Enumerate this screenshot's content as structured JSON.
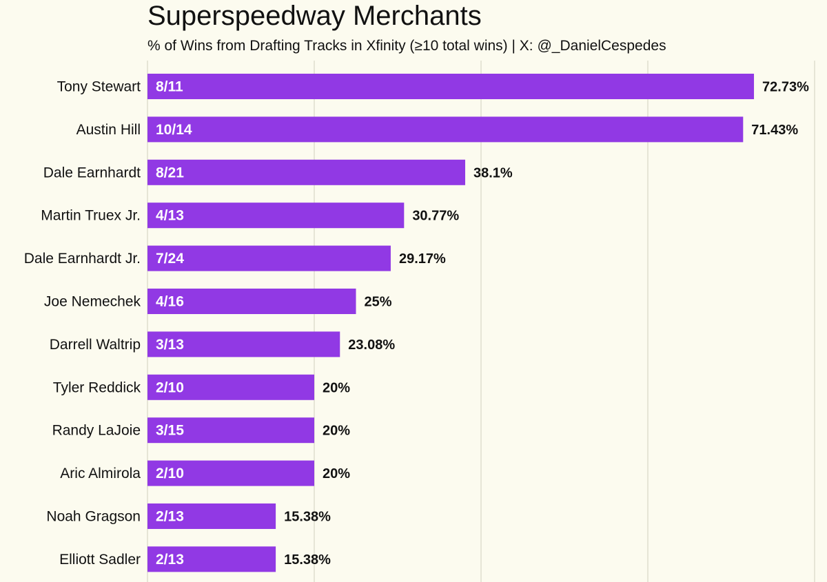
{
  "chart_data": {
    "type": "bar",
    "orientation": "horizontal",
    "title": "Superspeedway Merchants",
    "subtitle": "% of Wins from Drafting Tracks in Xfinity (≥10 total wins) | X: @_DanielCespedes",
    "xlabel": "",
    "ylabel": "",
    "xlim": [
      0,
      80
    ],
    "grid": true,
    "categories": [
      "Tony Stewart",
      "Austin Hill",
      "Dale Earnhardt",
      "Martin Truex Jr.",
      "Dale Earnhardt Jr.",
      "Joe Nemechek",
      "Darrell Waltrip",
      "Tyler Reddick",
      "Randy LaJoie",
      "Aric Almirola",
      "Noah Gragson",
      "Elliott Sadler"
    ],
    "values": [
      72.73,
      71.43,
      38.1,
      30.77,
      29.17,
      25,
      23.08,
      20,
      20,
      20,
      15.38,
      15.38
    ],
    "value_labels": [
      "72.73%",
      "71.43%",
      "38.1%",
      "30.77%",
      "29.17%",
      "25%",
      "23.08%",
      "20%",
      "20%",
      "20%",
      "15.38%",
      "15.38%"
    ],
    "bar_labels": [
      "8/11",
      "10/14",
      "8/21",
      "4/13",
      "7/24",
      "4/16",
      "3/13",
      "2/10",
      "3/15",
      "2/10",
      "2/13",
      "2/13"
    ]
  },
  "colors": {
    "bar": "#9139e4",
    "background": "#fcfbef",
    "grid": "#e6e5d6",
    "text": "#111111",
    "bar_text": "#ffffff"
  }
}
